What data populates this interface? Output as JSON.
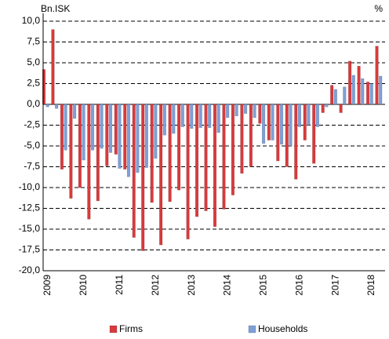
{
  "chart_data": {
    "type": "bar",
    "y_unit_left": "Bn.ISK",
    "y_unit_right": "%",
    "categories": [
      "2009",
      null,
      null,
      null,
      "2010",
      null,
      null,
      null,
      "2011",
      null,
      null,
      null,
      "2012",
      null,
      null,
      null,
      "2013",
      null,
      null,
      null,
      "2014",
      null,
      null,
      null,
      "2015",
      null,
      null,
      null,
      "2016",
      null,
      null,
      null,
      "2017",
      null,
      null,
      null,
      "2018",
      null
    ],
    "series": [
      {
        "name": "Firms",
        "color": "#d93a3c",
        "values": [
          4.2,
          9.0,
          -7.8,
          -11.3,
          -10.0,
          -13.8,
          -11.6,
          -7.4,
          -6.0,
          -7.8,
          -16.0,
          -17.6,
          -11.8,
          -16.9,
          -11.7,
          -10.3,
          -16.2,
          -13.5,
          -12.8,
          -14.7,
          -12.6,
          -10.9,
          -8.3,
          -7.5,
          -2.3,
          -4.3,
          -6.8,
          -7.5,
          -9.0,
          -4.3,
          -7.1,
          -1.0,
          2.3,
          -1.0,
          5.2,
          4.6,
          2.7,
          7.0
        ]
      },
      {
        "name": "Households",
        "color": "#7f9fd8",
        "values": [
          -0.3,
          -0.5,
          -5.5,
          -1.7,
          -6.7,
          -5.5,
          -5.3,
          -5.8,
          -7.7,
          -8.7,
          -8.2,
          -7.6,
          -6.5,
          -3.7,
          -3.5,
          -2.7,
          -2.9,
          -2.8,
          -2.8,
          -3.4,
          -1.6,
          -1.4,
          -1.1,
          -1.6,
          -4.7,
          -4.3,
          -4.8,
          -5.0,
          -2.7,
          -2.5,
          -2.7,
          -0.3,
          1.8,
          2.1,
          3.5,
          3.1,
          2.5,
          3.4
        ]
      }
    ],
    "ylim": [
      -20,
      10
    ],
    "yticks": [
      {
        "value": 10,
        "label": "10,0"
      },
      {
        "value": 7.5,
        "label": "7,5"
      },
      {
        "value": 5,
        "label": "5,0"
      },
      {
        "value": 2.5,
        "label": "2,5"
      },
      {
        "value": 0,
        "label": "0,0"
      },
      {
        "value": -2.5,
        "label": "-2,5"
      },
      {
        "value": -5,
        "label": "-5,0"
      },
      {
        "value": -7.5,
        "label": "-7,5"
      },
      {
        "value": -10,
        "label": "-10,0"
      },
      {
        "value": -12.5,
        "label": "-12,5"
      },
      {
        "value": -15,
        "label": "-15,0"
      },
      {
        "value": -17.5,
        "label": "-17,5"
      },
      {
        "value": -20,
        "label": "-20,0"
      }
    ],
    "grid": true
  }
}
